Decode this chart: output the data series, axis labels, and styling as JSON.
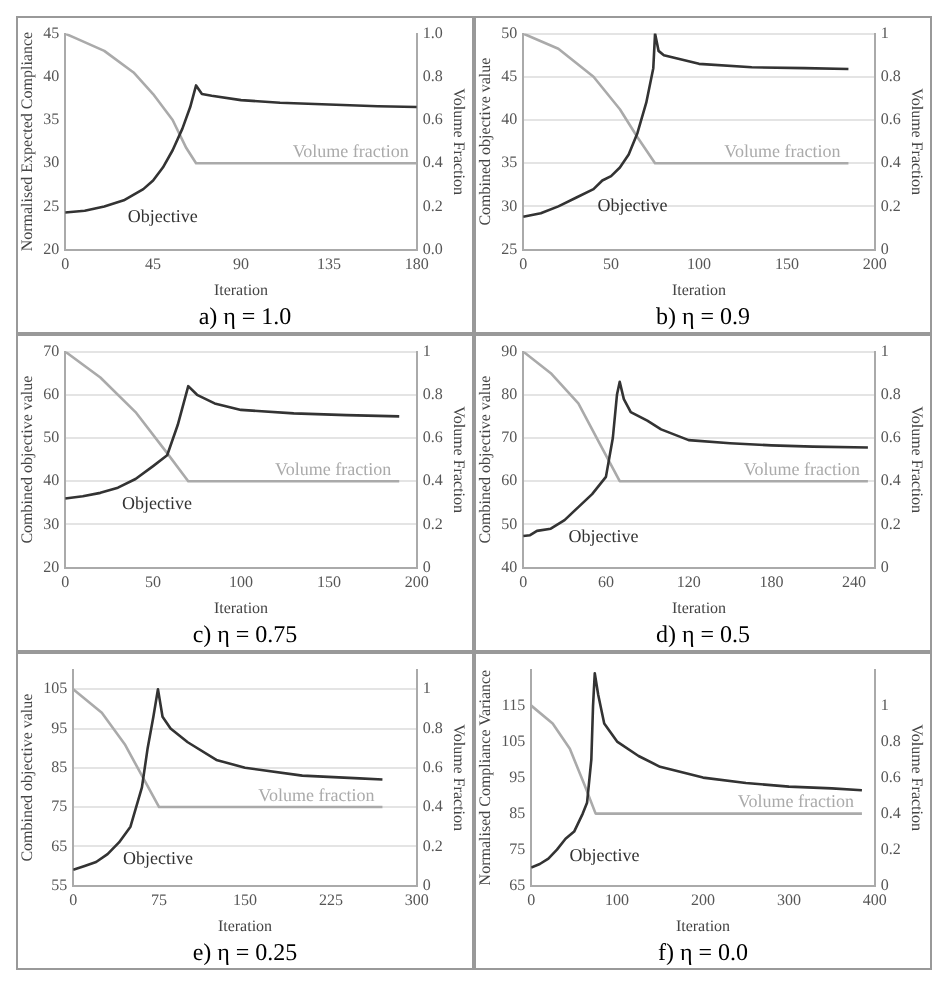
{
  "chart_data": [
    {
      "type": "line",
      "title": "a) η = 1.0",
      "xlabel": "Iteration",
      "ylabel": "Normalised Expected Compliance",
      "y2label": "Volume Fraction",
      "xlim": [
        0,
        180
      ],
      "xticks": [
        0,
        45,
        90,
        135,
        180
      ],
      "ylim": [
        20,
        45
      ],
      "yticks": [
        20,
        25,
        30,
        35,
        40,
        45
      ],
      "y2lim": [
        0,
        1
      ],
      "y2ticks": [
        {
          "value": 0,
          "label": "0.0"
        },
        0.2,
        0.4,
        0.6,
        0.8,
        {
          "value": 1,
          "label": "1.0"
        }
      ],
      "grid": false,
      "legend": false,
      "series": [
        {
          "name": "Objective",
          "color": "#333333",
          "x": [
            0,
            10,
            20,
            30,
            40,
            45,
            50,
            55,
            60,
            64,
            67,
            70,
            75,
            90,
            110,
            135,
            160,
            180
          ],
          "values": [
            24.3,
            24.5,
            25,
            25.7,
            27,
            28,
            29.5,
            31.5,
            34,
            36.5,
            39,
            38,
            37.8,
            37.3,
            37,
            36.8,
            36.6,
            36.5
          ]
        },
        {
          "name": "Volume fraction",
          "color": "#aaaaaa",
          "axis": "y2",
          "x": [
            0,
            5,
            20,
            35,
            45,
            55,
            62,
            67,
            180
          ],
          "values": [
            1,
            0.98,
            0.92,
            0.82,
            0.72,
            0.6,
            0.47,
            0.4,
            0.4
          ]
        }
      ]
    },
    {
      "type": "line",
      "title": "b) η = 0.9",
      "xlabel": "Iteration",
      "ylabel": "Combined objective value",
      "y2label": "Volume Fraction",
      "xlim": [
        0,
        200
      ],
      "xticks": [
        0,
        50,
        100,
        150,
        200
      ],
      "ylim": [
        25,
        50
      ],
      "yticks": [
        25,
        30,
        35,
        40,
        45,
        50
      ],
      "y2lim": [
        0,
        1
      ],
      "y2ticks": [
        0,
        0.2,
        0.4,
        0.6,
        0.8,
        1
      ],
      "grid": "y",
      "legend": false,
      "series": [
        {
          "name": "Objective",
          "color": "#333333",
          "x": [
            0,
            10,
            20,
            30,
            40,
            45,
            50,
            55,
            60,
            65,
            70,
            74,
            75,
            77,
            80,
            100,
            130,
            160,
            185
          ],
          "values": [
            28.8,
            29.2,
            30,
            31,
            32,
            33,
            33.5,
            34.5,
            36,
            38.5,
            42,
            46,
            50,
            48,
            47.5,
            46.5,
            46.1,
            46,
            45.9
          ]
        },
        {
          "name": "Volume fraction",
          "color": "#aaaaaa",
          "axis": "y2",
          "x": [
            0,
            20,
            40,
            55,
            65,
            75,
            185
          ],
          "values": [
            1,
            0.93,
            0.8,
            0.65,
            0.52,
            0.4,
            0.4
          ]
        }
      ]
    },
    {
      "type": "line",
      "title": "c) η = 0.75",
      "xlabel": "Iteration",
      "ylabel": "Combined objective value",
      "y2label": "Volume Fraction",
      "xlim": [
        0,
        200
      ],
      "xticks": [
        0,
        50,
        100,
        150,
        200
      ],
      "ylim": [
        20,
        70
      ],
      "yticks": [
        20,
        30,
        40,
        50,
        60,
        70
      ],
      "y2lim": [
        0,
        1
      ],
      "y2ticks": [
        0,
        0.2,
        0.4,
        0.6,
        0.8,
        1
      ],
      "grid": "y",
      "legend": false,
      "series": [
        {
          "name": "Objective",
          "color": "#333333",
          "x": [
            0,
            10,
            20,
            30,
            40,
            50,
            58,
            64,
            70,
            75,
            85,
            100,
            130,
            160,
            190
          ],
          "values": [
            36,
            36.5,
            37.3,
            38.5,
            40.5,
            43.5,
            46,
            53,
            62,
            60,
            58,
            56.5,
            55.7,
            55.3,
            55
          ]
        },
        {
          "name": "Volume fraction",
          "color": "#aaaaaa",
          "axis": "y2",
          "x": [
            0,
            20,
            40,
            58,
            70,
            190
          ],
          "values": [
            1,
            0.88,
            0.72,
            0.53,
            0.4,
            0.4
          ]
        }
      ]
    },
    {
      "type": "line",
      "title": "d) η = 0.5",
      "xlabel": "Iteration",
      "ylabel": "Combined objective value",
      "y2label": "Volume Fraction",
      "xlim": [
        0,
        255
      ],
      "xticks": [
        0,
        60,
        120,
        180,
        240
      ],
      "ylim": [
        40,
        90
      ],
      "yticks": [
        40,
        50,
        60,
        70,
        80,
        90
      ],
      "y2lim": [
        0,
        1
      ],
      "y2ticks": [
        0,
        0.2,
        0.4,
        0.6,
        0.8,
        1
      ],
      "grid": "y",
      "legend": false,
      "series": [
        {
          "name": "Objective",
          "color": "#333333",
          "x": [
            0,
            5,
            10,
            20,
            30,
            40,
            50,
            60,
            65,
            68,
            70,
            73,
            78,
            90,
            100,
            120,
            150,
            180,
            210,
            250
          ],
          "values": [
            47.3,
            47.5,
            48.5,
            49,
            51,
            54,
            57,
            61,
            70,
            80,
            83,
            79,
            76,
            74,
            72,
            69.5,
            68.8,
            68.3,
            68,
            67.8
          ]
        },
        {
          "name": "Volume fraction",
          "color": "#aaaaaa",
          "axis": "y2",
          "x": [
            0,
            20,
            40,
            55,
            70,
            250
          ],
          "values": [
            1,
            0.9,
            0.76,
            0.58,
            0.4,
            0.4
          ]
        }
      ]
    },
    {
      "type": "line",
      "title": "e) η = 0.25",
      "xlabel": "Iteration",
      "ylabel": "Combined objective value",
      "y2label": "Volume Fraction",
      "xlim": [
        0,
        300
      ],
      "xticks": [
        0,
        75,
        150,
        225,
        300
      ],
      "ylim": [
        55,
        110
      ],
      "yticks": [
        55,
        65,
        75,
        85,
        95,
        105
      ],
      "y2lim": [
        0,
        1.1
      ],
      "y2ticks": [
        0,
        0.2,
        0.4,
        0.6,
        0.8,
        1
      ],
      "grid": "y",
      "legend": false,
      "series": [
        {
          "name": "Objective",
          "color": "#333333",
          "x": [
            0,
            10,
            20,
            30,
            40,
            50,
            60,
            65,
            70,
            74,
            78,
            85,
            100,
            125,
            150,
            200,
            250,
            270
          ],
          "values": [
            59,
            60,
            61,
            63,
            66,
            70,
            80,
            90,
            98,
            105,
            98,
            95,
            91.5,
            87,
            85,
            83,
            82.3,
            82
          ]
        },
        {
          "name": "Volume fraction",
          "color": "#aaaaaa",
          "axis": "y2",
          "x": [
            0,
            25,
            45,
            60,
            75,
            270
          ],
          "values": [
            1,
            0.88,
            0.72,
            0.56,
            0.4,
            0.4
          ]
        }
      ]
    },
    {
      "type": "line",
      "title": "f) η = 0.0",
      "xlabel": "Iteration",
      "ylabel": "Normalised Compliance Variance",
      "y2label": "Volume Fraction",
      "xlim": [
        0,
        400
      ],
      "xticks": [
        0,
        100,
        200,
        300,
        400
      ],
      "ylim": [
        65,
        125
      ],
      "yticks": [
        65,
        75,
        85,
        95,
        105,
        115
      ],
      "y2lim": [
        0,
        1.2
      ],
      "y2ticks": [
        0,
        0.2,
        0.4,
        0.6,
        0.8,
        1
      ],
      "grid": false,
      "legend": false,
      "series": [
        {
          "name": "Objective",
          "color": "#333333",
          "x": [
            0,
            10,
            20,
            30,
            40,
            50,
            60,
            65,
            70,
            72,
            74,
            78,
            85,
            100,
            125,
            150,
            200,
            250,
            300,
            350,
            385
          ],
          "values": [
            70,
            71,
            72.5,
            75,
            78,
            80,
            85,
            88,
            100,
            115,
            124,
            118,
            110,
            105,
            101,
            98,
            95,
            93.5,
            92.5,
            92,
            91.5
          ]
        },
        {
          "name": "Volume fraction",
          "color": "#aaaaaa",
          "axis": "y2",
          "x": [
            0,
            25,
            45,
            62,
            75,
            385
          ],
          "values": [
            1,
            0.9,
            0.76,
            0.56,
            0.4,
            0.4
          ]
        }
      ]
    }
  ]
}
